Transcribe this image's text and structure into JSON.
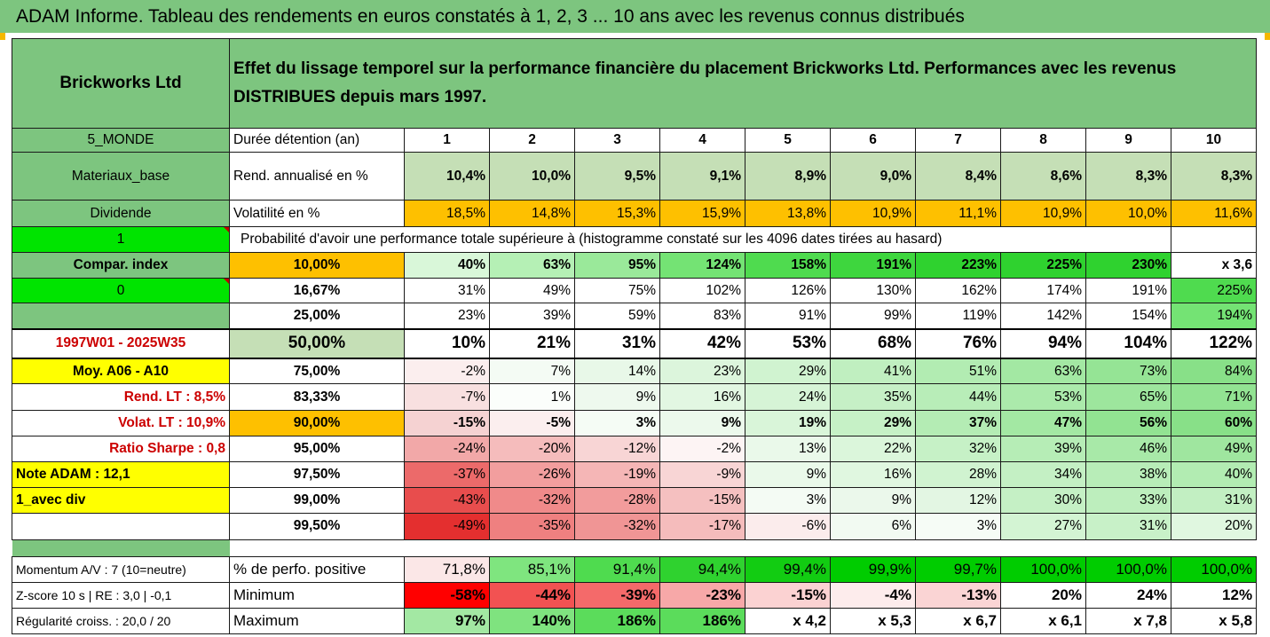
{
  "title": "ADAM Informe. Tableau des rendements en euros constatés à 1, 2, 3 ... 10 ans avec les revenus connus distribués",
  "header": {
    "company": "Brickworks Ltd",
    "description": "Effet du lissage temporel sur la performance financière du placement Brickworks Ltd. Performances avec les revenus DISTRIBUES depuis mars 1997."
  },
  "sidebar": {
    "region": "5_MONDE",
    "sector": "Materiaux_base",
    "dividend": "Dividende",
    "value_1": "1",
    "compar": "Compar. index",
    "value_0": "0",
    "period": "1997W01 - 2025W35",
    "moy": "Moy. A06 - A10",
    "rend_lt": "Rend. LT :   8,5%",
    "volat_lt": "Volat. LT :   10,9%",
    "sharpe": "Ratio Sharpe :   0,8",
    "note": "Note ADAM : 12,1",
    "mode": "1_avec div",
    "momentum": "Momentum A/V : 7 (10=neutre)",
    "zscore": "Z-score 10 s  |  RE : 3,0  |  -0,1",
    "regularite": "Régularité croiss. : 20,0 / 20"
  },
  "labels": {
    "duree": "Durée détention (an)",
    "rend": "Rend. annualisé en %",
    "vol": "Volatilité en %",
    "proba": "Probabilité d'avoir une performance totale supérieure à (histogramme constaté sur les 4096 dates tirées au hasard)",
    "perf_pos": "% de perfo. positive",
    "minimum": "Minimum",
    "maximum": "Maximum"
  },
  "years": [
    "1",
    "2",
    "3",
    "4",
    "5",
    "6",
    "7",
    "8",
    "9",
    "10"
  ],
  "rend_annualise": [
    "10,4%",
    "10,0%",
    "9,5%",
    "9,1%",
    "8,9%",
    "9,0%",
    "8,4%",
    "8,6%",
    "8,3%",
    "8,3%"
  ],
  "volatilite": [
    "18,5%",
    "14,8%",
    "15,3%",
    "15,9%",
    "13,8%",
    "10,9%",
    "11,1%",
    "10,9%",
    "10,0%",
    "11,6%"
  ],
  "quantiles": [
    {
      "q": "10,00%",
      "v": [
        "40%",
        "63%",
        "95%",
        "124%",
        "158%",
        "191%",
        "223%",
        "225%",
        "230%",
        "x 3,6"
      ]
    },
    {
      "q": "16,67%",
      "v": [
        "31%",
        "49%",
        "75%",
        "102%",
        "126%",
        "130%",
        "162%",
        "174%",
        "191%",
        "225%"
      ]
    },
    {
      "q": "25,00%",
      "v": [
        "23%",
        "39%",
        "59%",
        "83%",
        "91%",
        "99%",
        "119%",
        "142%",
        "154%",
        "194%"
      ]
    },
    {
      "q": "50,00%",
      "v": [
        "10%",
        "21%",
        "31%",
        "42%",
        "53%",
        "68%",
        "76%",
        "94%",
        "104%",
        "122%"
      ]
    },
    {
      "q": "75,00%",
      "v": [
        "-2%",
        "7%",
        "14%",
        "23%",
        "29%",
        "41%",
        "51%",
        "63%",
        "73%",
        "84%"
      ]
    },
    {
      "q": "83,33%",
      "v": [
        "-7%",
        "1%",
        "9%",
        "16%",
        "24%",
        "35%",
        "44%",
        "53%",
        "65%",
        "71%"
      ]
    },
    {
      "q": "90,00%",
      "v": [
        "-15%",
        "-5%",
        "3%",
        "9%",
        "19%",
        "29%",
        "37%",
        "47%",
        "56%",
        "60%"
      ]
    },
    {
      "q": "95,00%",
      "v": [
        "-24%",
        "-20%",
        "-12%",
        "-2%",
        "13%",
        "22%",
        "32%",
        "39%",
        "46%",
        "49%"
      ]
    },
    {
      "q": "97,50%",
      "v": [
        "-37%",
        "-26%",
        "-19%",
        "-9%",
        "9%",
        "16%",
        "28%",
        "34%",
        "38%",
        "40%"
      ]
    },
    {
      "q": "99,00%",
      "v": [
        "-43%",
        "-32%",
        "-28%",
        "-15%",
        "3%",
        "9%",
        "12%",
        "30%",
        "33%",
        "31%"
      ]
    },
    {
      "q": "99,50%",
      "v": [
        "-49%",
        "-35%",
        "-32%",
        "-17%",
        "-6%",
        "6%",
        "3%",
        "27%",
        "31%",
        "20%"
      ]
    }
  ],
  "perf_positive": [
    "71,8%",
    "85,1%",
    "91,4%",
    "94,4%",
    "99,4%",
    "99,9%",
    "99,7%",
    "100,0%",
    "100,0%",
    "100,0%"
  ],
  "minimum": [
    "-58%",
    "-44%",
    "-39%",
    "-23%",
    "-15%",
    "-4%",
    "-13%",
    "20%",
    "24%",
    "12%"
  ],
  "maximum": [
    "97%",
    "140%",
    "186%",
    "186%",
    "x 4,2",
    "x 5,3",
    "x 6,7",
    "x 6,1",
    "x 7,8",
    "x 5,8"
  ],
  "colors": {
    "green": "#7dc57f",
    "light_green": "#c5dfb6",
    "yellow": "#ffff00",
    "orange": "#fec000",
    "bright_green": "#00e400",
    "red_text": "#cc0000"
  },
  "cell_colors": {
    "quantiles": [
      [
        "#d9f7d9",
        "#b5f0b5",
        "#9ae99a",
        "#74e374",
        "#4fdb4f",
        "#3ed63e",
        "#2fd22f",
        "#2fd22f",
        "#2fd22f",
        "#ffffff"
      ],
      [
        "#ffffff",
        "#ffffff",
        "#ffffff",
        "#ffffff",
        "#ffffff",
        "#ffffff",
        "#ffffff",
        "#ffffff",
        "#ffffff",
        "#4fdb4f"
      ],
      [
        "#ffffff",
        "#ffffff",
        "#ffffff",
        "#ffffff",
        "#ffffff",
        "#ffffff",
        "#ffffff",
        "#ffffff",
        "#ffffff",
        "#74e374"
      ],
      [
        "#ffffff",
        "#ffffff",
        "#ffffff",
        "#ffffff",
        "#ffffff",
        "#ffffff",
        "#ffffff",
        "#ffffff",
        "#ffffff",
        "#ffffff"
      ],
      [
        "#fbeeee",
        "#f4fbf4",
        "#e8f8e8",
        "#dcf5dc",
        "#d0f3d0",
        "#c0efc0",
        "#b2ecb2",
        "#a3e8a3",
        "#95e495",
        "#88e088"
      ],
      [
        "#f8e0e0",
        "#fbfefb",
        "#eef9ee",
        "#e2f7e2",
        "#d6f4d6",
        "#c6f0c6",
        "#b8edb8",
        "#abeaab",
        "#9de69d",
        "#92e392"
      ],
      [
        "#f5d2d2",
        "#fbeeee",
        "#f5fcf5",
        "#ecf9ec",
        "#d9f5d9",
        "#c6f1c6",
        "#b4ecb4",
        "#a3e8a3",
        "#92e392",
        "#88e088"
      ],
      [
        "#f2a8a8",
        "#f5bcbc",
        "#f8d5d5",
        "#fdf4f4",
        "#eaf9ea",
        "#dbf6db",
        "#c6f1c6",
        "#b6edb6",
        "#a8e9a8",
        "#9fe69f"
      ],
      [
        "#ec6a6a",
        "#f29e9e",
        "#f5b6b6",
        "#f8d5d5",
        "#eaf9ea",
        "#e0f7e0",
        "#d0f3d0",
        "#c4f0c4",
        "#b8edb8",
        "#b2ecb2"
      ],
      [
        "#e84d4d",
        "#f08a8a",
        "#f29c9c",
        "#f5c0c0",
        "#f4fbf4",
        "#ebf8eb",
        "#e3f6e3",
        "#c5f0c5",
        "#bdeebd",
        "#c2efc2"
      ],
      [
        "#e42f2f",
        "#ef8080",
        "#f09595",
        "#f5bcbc",
        "#fbecec",
        "#f2faf2",
        "#f6fcf6",
        "#d3f4d3",
        "#c8f1c8",
        "#e0f7e0"
      ]
    ],
    "perf_positive": [
      "#fbe7e7",
      "#7fe57f",
      "#4fdb4f",
      "#2fd22f",
      "#12cc12",
      "#00cc00",
      "#00cc00",
      "#00cc00",
      "#00cc00",
      "#00cc00"
    ],
    "minimum": [
      "#ff0000",
      "#f25252",
      "#f46a6a",
      "#f7a8a8",
      "#fbd2d2",
      "#fdecec",
      "#fad4d4",
      "#ffffff",
      "#ffffff",
      "#ffffff"
    ],
    "maximum": [
      "#a3e8a3",
      "#7fe37f",
      "#5bdc5b",
      "#5bdc5b",
      "#ffffff",
      "#ffffff",
      "#ffffff",
      "#ffffff",
      "#ffffff",
      "#ffffff"
    ]
  }
}
